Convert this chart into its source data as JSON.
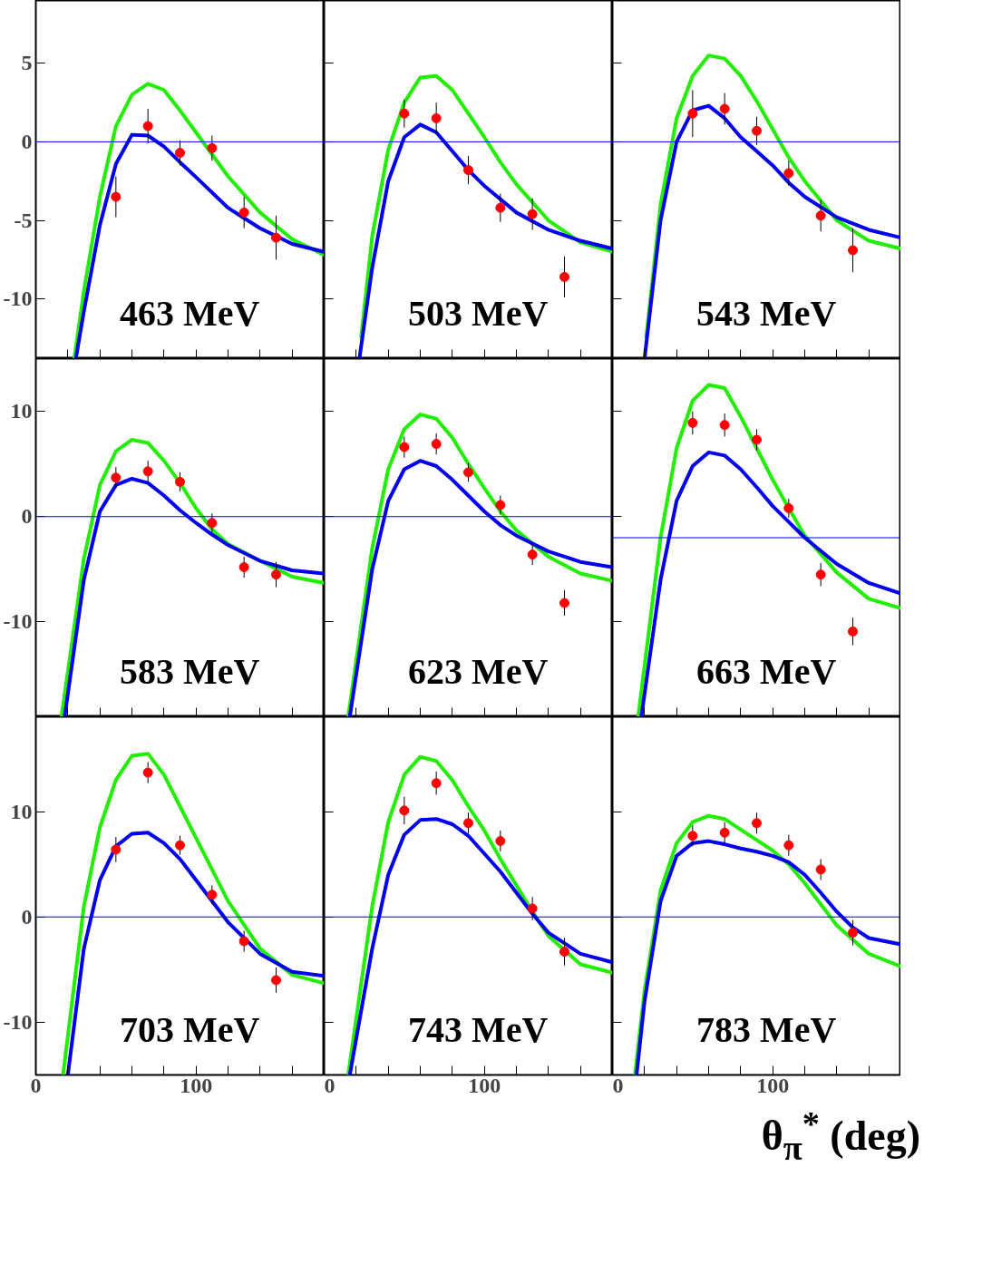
{
  "chart_data": [
    {
      "type": "scatter",
      "annotations": [
        "463 MeV"
      ],
      "x": [
        50,
        70,
        90,
        110,
        130,
        150
      ],
      "xlim": [
        0,
        180
      ],
      "ylim": [
        -13.8,
        9
      ],
      "xticks": [
        0,
        {
          "value": 20,
          "label": null
        },
        {
          "value": 40,
          "label": null
        },
        {
          "value": 60,
          "label": null
        },
        {
          "value": 80,
          "label": null
        },
        100,
        {
          "value": 120,
          "label": null
        },
        {
          "value": 140,
          "label": null
        },
        {
          "value": 160,
          "label": null
        }
      ],
      "yticks": [
        -10,
        -5,
        0,
        5
      ],
      "tick_labels": "y",
      "ref_lines": [
        {
          "axis": "y",
          "value": 0,
          "color": "#0000ff"
        }
      ],
      "series": [
        {
          "color": "#ff0000",
          "marker": "circle",
          "values": [
            -3.5,
            1.0,
            -0.7,
            -0.4,
            -4.5,
            -6.1
          ],
          "errors": [
            1.3,
            1.1,
            0.8,
            0.8,
            1.0,
            1.4
          ]
        },
        {
          "type": "line",
          "color": "#22ee00",
          "x": [
            24,
            30,
            40,
            50,
            60,
            70,
            80,
            90,
            100,
            110,
            120,
            140,
            160,
            180
          ],
          "values": [
            -13.8,
            -9.5,
            -3.5,
            1.0,
            3.0,
            3.7,
            3.3,
            2.0,
            0.6,
            -0.8,
            -2.2,
            -4.5,
            -6.2,
            -7.2
          ]
        },
        {
          "type": "line",
          "color": "#0000ee",
          "x": [
            25,
            30,
            40,
            50,
            60,
            70,
            80,
            90,
            100,
            120,
            140,
            160,
            180
          ],
          "values": [
            -13.8,
            -10.8,
            -5.3,
            -1.4,
            0.45,
            0.4,
            -0.3,
            -1.3,
            -2.25,
            -4.2,
            -5.5,
            -6.5,
            -7.0
          ]
        }
      ]
    },
    {
      "type": "scatter",
      "annotations": [
        "503 MeV"
      ],
      "x": [
        50,
        70,
        90,
        110,
        130,
        150
      ],
      "xlim": [
        0,
        180
      ],
      "ylim": [
        -13.8,
        9
      ],
      "xticks": [
        0,
        {
          "value": 20,
          "label": null
        },
        {
          "value": 40,
          "label": null
        },
        {
          "value": 60,
          "label": null
        },
        {
          "value": 80,
          "label": null
        },
        100,
        {
          "value": 120,
          "label": null
        },
        {
          "value": 140,
          "label": null
        },
        {
          "value": 160,
          "label": null
        }
      ],
      "yticks": [
        -10,
        -5,
        0,
        5
      ],
      "tick_labels": false,
      "ref_lines": [
        {
          "axis": "y",
          "value": 0,
          "color": "#0000ff"
        }
      ],
      "series": [
        {
          "color": "#ff0000",
          "marker": "circle",
          "values": [
            1.8,
            1.5,
            -1.8,
            -4.2,
            -4.6,
            -8.6
          ],
          "errors": [
            0.9,
            1.0,
            0.9,
            0.9,
            1.0,
            1.3
          ]
        },
        {
          "type": "line",
          "color": "#22ee00",
          "x": [
            23,
            30,
            40,
            50,
            60,
            70,
            80,
            90,
            100,
            110,
            120,
            140,
            160,
            180
          ],
          "values": [
            -12.5,
            -6,
            -0.5,
            2.5,
            4.1,
            4.2,
            3.3,
            1.8,
            0.3,
            -1.3,
            -2.7,
            -5,
            -6.4,
            -7
          ]
        },
        {
          "type": "line",
          "color": "#0000ee",
          "x": [
            22,
            30,
            40,
            50,
            60,
            70,
            80,
            90,
            100,
            120,
            140,
            160,
            180
          ],
          "values": [
            -13.8,
            -8,
            -2.5,
            0.3,
            1.1,
            0.6,
            -0.6,
            -1.8,
            -2.8,
            -4.5,
            -5.6,
            -6.3,
            -6.8
          ]
        }
      ]
    },
    {
      "type": "scatter",
      "annotations": [
        "543 MeV"
      ],
      "x": [
        50,
        70,
        90,
        110,
        130,
        150
      ],
      "xlim": [
        0,
        180
      ],
      "ylim": [
        -13.8,
        9
      ],
      "xticks": [
        0,
        {
          "value": 20,
          "label": null
        },
        {
          "value": 40,
          "label": null
        },
        {
          "value": 60,
          "label": null
        },
        {
          "value": 80,
          "label": null
        },
        100,
        {
          "value": 120,
          "label": null
        },
        {
          "value": 140,
          "label": null
        },
        {
          "value": 160,
          "label": null
        }
      ],
      "yticks": [
        -10,
        -5,
        0,
        5
      ],
      "tick_labels": false,
      "ref_lines": [
        {
          "axis": "y",
          "value": 0,
          "color": "#0000ff"
        }
      ],
      "series": [
        {
          "color": "#ff0000",
          "marker": "circle",
          "values": [
            1.8,
            2.1,
            0.7,
            -2.0,
            -4.7,
            -6.9
          ],
          "errors": [
            1.5,
            1.0,
            0.9,
            0.8,
            1.0,
            1.4
          ]
        },
        {
          "type": "line",
          "color": "#22ee00",
          "x": [
            21,
            30,
            40,
            50,
            60,
            70,
            80,
            90,
            100,
            110,
            120,
            140,
            160,
            180
          ],
          "values": [
            -12.5,
            -4,
            1.5,
            4.2,
            5.5,
            5.3,
            4.2,
            2.6,
            0.8,
            -1.0,
            -2.5,
            -5.0,
            -6.3,
            -6.8
          ]
        },
        {
          "type": "line",
          "color": "#0000ee",
          "x": [
            20,
            30,
            40,
            50,
            60,
            70,
            80,
            90,
            100,
            110,
            120,
            140,
            160,
            180
          ],
          "values": [
            -13.8,
            -5,
            0,
            2.0,
            2.3,
            1.5,
            0.3,
            -0.6,
            -1.5,
            -2.6,
            -3.5,
            -4.8,
            -5.6,
            -6.1
          ]
        }
      ]
    },
    {
      "type": "scatter",
      "annotations": [
        "583 MeV"
      ],
      "x": [
        50,
        70,
        90,
        110,
        130,
        150
      ],
      "xlim": [
        0,
        180
      ],
      "ylim": [
        -19,
        15
      ],
      "xticks": [
        0,
        {
          "value": 20,
          "label": null
        },
        {
          "value": 40,
          "label": null
        },
        {
          "value": 60,
          "label": null
        },
        {
          "value": 80,
          "label": null
        },
        100,
        {
          "value": 120,
          "label": null
        },
        {
          "value": 140,
          "label": null
        },
        {
          "value": 160,
          "label": null
        }
      ],
      "yticks": [
        -10,
        0,
        10
      ],
      "tick_labels": "y",
      "ref_lines": [
        {
          "axis": "y",
          "value": 0,
          "color": "#0000ff"
        }
      ],
      "series": [
        {
          "color": "#ff0000",
          "marker": "circle",
          "values": [
            3.7,
            4.3,
            3.3,
            -0.6,
            -4.8,
            -5.5
          ],
          "errors": [
            1.0,
            1.0,
            0.9,
            0.9,
            1.0,
            1.2
          ]
        },
        {
          "type": "line",
          "color": "#22ee00",
          "x": [
            16,
            30,
            40,
            50,
            60,
            70,
            80,
            90,
            100,
            110,
            120,
            140,
            160,
            180
          ],
          "values": [
            -19,
            -4,
            3,
            6.2,
            7.3,
            7.0,
            5.3,
            3.2,
            0.8,
            -1.2,
            -2.6,
            -4.2,
            -5.7,
            -6.3
          ]
        },
        {
          "type": "line",
          "color": "#0000ee",
          "x": [
            18,
            30,
            40,
            50,
            60,
            70,
            80,
            90,
            100,
            110,
            120,
            140,
            160,
            180
          ],
          "values": [
            -19,
            -6,
            0.5,
            3.0,
            3.6,
            3.2,
            2.0,
            0.6,
            -0.6,
            -1.7,
            -2.7,
            -4.2,
            -5.1,
            -5.4
          ]
        }
      ]
    },
    {
      "type": "scatter",
      "annotations": [
        "623 MeV"
      ],
      "x": [
        50,
        70,
        90,
        110,
        130,
        150
      ],
      "xlim": [
        0,
        180
      ],
      "ylim": [
        -19,
        15
      ],
      "xticks": [
        0,
        {
          "value": 20,
          "label": null
        },
        {
          "value": 40,
          "label": null
        },
        {
          "value": 60,
          "label": null
        },
        {
          "value": 80,
          "label": null
        },
        100,
        {
          "value": 120,
          "label": null
        },
        {
          "value": 140,
          "label": null
        },
        {
          "value": 160,
          "label": null
        }
      ],
      "yticks": [
        -10,
        0,
        10
      ],
      "tick_labels": false,
      "ref_lines": [
        {
          "axis": "y",
          "value": 0,
          "color": "#0000ff"
        }
      ],
      "series": [
        {
          "color": "#ff0000",
          "marker": "circle",
          "values": [
            6.6,
            6.9,
            4.2,
            1.1,
            -3.6,
            -8.2
          ],
          "errors": [
            1.0,
            1.0,
            0.9,
            0.9,
            1.0,
            1.2
          ]
        },
        {
          "type": "line",
          "color": "#22ee00",
          "x": [
            15,
            30,
            40,
            50,
            60,
            70,
            80,
            90,
            100,
            110,
            120,
            140,
            160,
            180
          ],
          "values": [
            -19,
            -3,
            4.5,
            8.3,
            9.7,
            9.3,
            7.5,
            5.0,
            2.7,
            0.5,
            -1.3,
            -3.8,
            -5.4,
            -6.1
          ]
        },
        {
          "type": "line",
          "color": "#0000ee",
          "x": [
            16,
            30,
            40,
            50,
            60,
            70,
            80,
            90,
            100,
            110,
            120,
            140,
            160,
            180
          ],
          "values": [
            -19,
            -5,
            1.5,
            4.5,
            5.3,
            4.8,
            3.5,
            2.0,
            0.5,
            -0.8,
            -1.8,
            -3.3,
            -4.3,
            -4.8
          ]
        }
      ]
    },
    {
      "type": "scatter",
      "annotations": [
        "663 MeV"
      ],
      "x": [
        50,
        70,
        90,
        110,
        130,
        150
      ],
      "xlim": [
        0,
        180
      ],
      "ylim": [
        -19,
        15
      ],
      "xticks": [
        0,
        {
          "value": 20,
          "label": null
        },
        {
          "value": 40,
          "label": null
        },
        {
          "value": 60,
          "label": null
        },
        {
          "value": 80,
          "label": null
        },
        100,
        {
          "value": 120,
          "label": null
        },
        {
          "value": 140,
          "label": null
        },
        {
          "value": 160,
          "label": null
        }
      ],
      "yticks": [
        -10,
        0,
        10
      ],
      "tick_labels": false,
      "ref_lines": [
        {
          "axis": "y",
          "value": -2,
          "color": "#0000ff"
        }
      ],
      "series": [
        {
          "color": "#ff0000",
          "marker": "circle",
          "values": [
            8.9,
            8.7,
            7.3,
            0.8,
            -5.5,
            -10.9
          ],
          "errors": [
            1.1,
            1.1,
            1.0,
            0.9,
            1.1,
            1.3
          ]
        },
        {
          "type": "line",
          "color": "#22ee00",
          "x": [
            16,
            30,
            40,
            50,
            60,
            70,
            80,
            90,
            100,
            110,
            120,
            140,
            160,
            180
          ],
          "values": [
            -19,
            -2,
            6.5,
            11.0,
            12.5,
            12.2,
            9.5,
            6.5,
            3.5,
            0.8,
            -1.8,
            -5.3,
            -7.8,
            -8.7
          ]
        },
        {
          "type": "line",
          "color": "#0000ee",
          "x": [
            18,
            30,
            40,
            50,
            60,
            70,
            80,
            90,
            100,
            110,
            120,
            140,
            160,
            180
          ],
          "values": [
            -19,
            -6,
            1.5,
            4.8,
            6.1,
            5.8,
            4.5,
            2.8,
            1.0,
            -0.5,
            -2,
            -4.5,
            -6.3,
            -7.3
          ]
        }
      ]
    },
    {
      "type": "scatter",
      "annotations": [
        "703 MeV"
      ],
      "x": [
        50,
        70,
        90,
        110,
        130,
        150
      ],
      "xlim": [
        0,
        180
      ],
      "ylim": [
        -15,
        19
      ],
      "xticks": [
        0,
        {
          "value": 20,
          "label": null
        },
        {
          "value": 40,
          "label": null
        },
        {
          "value": 60,
          "label": null
        },
        {
          "value": 80,
          "label": null
        },
        100,
        {
          "value": 120,
          "label": null
        },
        {
          "value": 140,
          "label": null
        },
        {
          "value": 160,
          "label": null
        }
      ],
      "yticks": [
        -10,
        0,
        10
      ],
      "ref_lines": [
        {
          "axis": "y",
          "value": 0,
          "color": "#0000ff"
        }
      ],
      "series": [
        {
          "color": "#ff0000",
          "marker": "circle",
          "values": [
            6.4,
            13.7,
            6.8,
            2.1,
            -2.3,
            -6.0
          ],
          "errors": [
            1.2,
            1.0,
            0.9,
            0.9,
            1.0,
            1.2
          ]
        },
        {
          "type": "line",
          "color": "#22ee00",
          "x": [
            17,
            30,
            40,
            50,
            60,
            70,
            80,
            90,
            100,
            110,
            120,
            140,
            160,
            180
          ],
          "values": [
            -15,
            1,
            8.5,
            13.0,
            15.3,
            15.5,
            13.5,
            10.5,
            7.5,
            4.5,
            1.5,
            -3.0,
            -5.5,
            -6.3
          ]
        },
        {
          "type": "line",
          "color": "#0000ee",
          "x": [
            20,
            30,
            40,
            50,
            60,
            70,
            80,
            90,
            100,
            110,
            120,
            140,
            160,
            180
          ],
          "values": [
            -15,
            -3,
            3.5,
            6.7,
            7.9,
            8.0,
            7.0,
            5.5,
            3.5,
            1.5,
            -0.5,
            -3.5,
            -5.2,
            -5.6
          ]
        }
      ]
    },
    {
      "type": "scatter",
      "annotations": [
        "743 MeV"
      ],
      "x": [
        50,
        70,
        90,
        110,
        130,
        150
      ],
      "xlim": [
        0,
        180
      ],
      "ylim": [
        -15,
        19
      ],
      "xticks": [
        0,
        {
          "value": 20,
          "label": null
        },
        {
          "value": 40,
          "label": null
        },
        {
          "value": 60,
          "label": null
        },
        {
          "value": 80,
          "label": null
        },
        100,
        {
          "value": 120,
          "label": null
        },
        {
          "value": 140,
          "label": null
        },
        {
          "value": 160,
          "label": null
        }
      ],
      "yticks": [
        -10,
        0,
        10
      ],
      "tick_labels": "x",
      "ref_lines": [
        {
          "axis": "y",
          "value": 0,
          "color": "#0000ff"
        }
      ],
      "series": [
        {
          "color": "#ff0000",
          "marker": "circle",
          "values": [
            10.1,
            12.7,
            8.9,
            7.2,
            0.8,
            -3.3
          ],
          "errors": [
            1.3,
            1.1,
            1.0,
            1.0,
            1.1,
            1.3
          ]
        },
        {
          "type": "line",
          "color": "#22ee00",
          "x": [
            15,
            30,
            40,
            50,
            60,
            70,
            80,
            90,
            100,
            110,
            120,
            130,
            140,
            160,
            180
          ],
          "values": [
            -15,
            1,
            9,
            13.5,
            15.2,
            14.8,
            13,
            10.5,
            8.2,
            5.5,
            3,
            0.5,
            -1.8,
            -4.5,
            -5.3
          ]
        },
        {
          "type": "line",
          "color": "#0000ee",
          "x": [
            16,
            30,
            40,
            50,
            60,
            70,
            80,
            90,
            100,
            110,
            120,
            130,
            140,
            160,
            180
          ],
          "values": [
            -15,
            -3,
            4,
            7.8,
            9.2,
            9.3,
            8.8,
            7.7,
            6.0,
            4.3,
            2.3,
            0.3,
            -1.5,
            -3.5,
            -4.3
          ]
        }
      ]
    },
    {
      "type": "scatter",
      "annotations": [
        "783 MeV"
      ],
      "xlabel": "θ$_{π}$$^{*}$ (deg)",
      "x": [
        50,
        70,
        90,
        110,
        130,
        150
      ],
      "xlim": [
        0,
        180
      ],
      "ylim": [
        -15,
        19
      ],
      "xticks": [
        0,
        {
          "value": 20,
          "label": null
        },
        {
          "value": 40,
          "label": null
        },
        {
          "value": 60,
          "label": null
        },
        {
          "value": 80,
          "label": null
        },
        100,
        {
          "value": 120,
          "label": null
        },
        {
          "value": 140,
          "label": null
        },
        {
          "value": 160,
          "label": null
        }
      ],
      "yticks": [
        -10,
        0,
        10
      ],
      "tick_labels": "x",
      "ref_lines": [
        {
          "axis": "y",
          "value": 0,
          "color": "#0000ff"
        }
      ],
      "series": [
        {
          "color": "#ff0000",
          "marker": "circle",
          "values": [
            7.7,
            8.0,
            8.9,
            6.8,
            4.5,
            -1.5
          ],
          "errors": [
            1.0,
            1.0,
            1.0,
            1.0,
            1.0,
            1.2
          ]
        },
        {
          "type": "line",
          "color": "#22ee00",
          "x": [
            14,
            20,
            30,
            40,
            50,
            60,
            70,
            80,
            90,
            100,
            110,
            120,
            130,
            140,
            160,
            180
          ],
          "values": [
            -15,
            -7,
            2.5,
            7.0,
            9.0,
            9.6,
            9.3,
            8.3,
            7.3,
            6.3,
            5,
            3.2,
            1.2,
            -0.8,
            -3.5,
            -4.7
          ]
        },
        {
          "type": "line",
          "color": "#0000ee",
          "x": [
            15,
            20,
            30,
            40,
            50,
            60,
            70,
            80,
            90,
            100,
            110,
            120,
            130,
            140,
            150,
            160,
            180
          ],
          "values": [
            -15,
            -8,
            1.5,
            5.8,
            7.0,
            7.2,
            6.9,
            6.5,
            6.2,
            5.8,
            5.2,
            4.0,
            2.3,
            0.5,
            -1.0,
            -2.0,
            -2.6
          ]
        }
      ]
    }
  ]
}
